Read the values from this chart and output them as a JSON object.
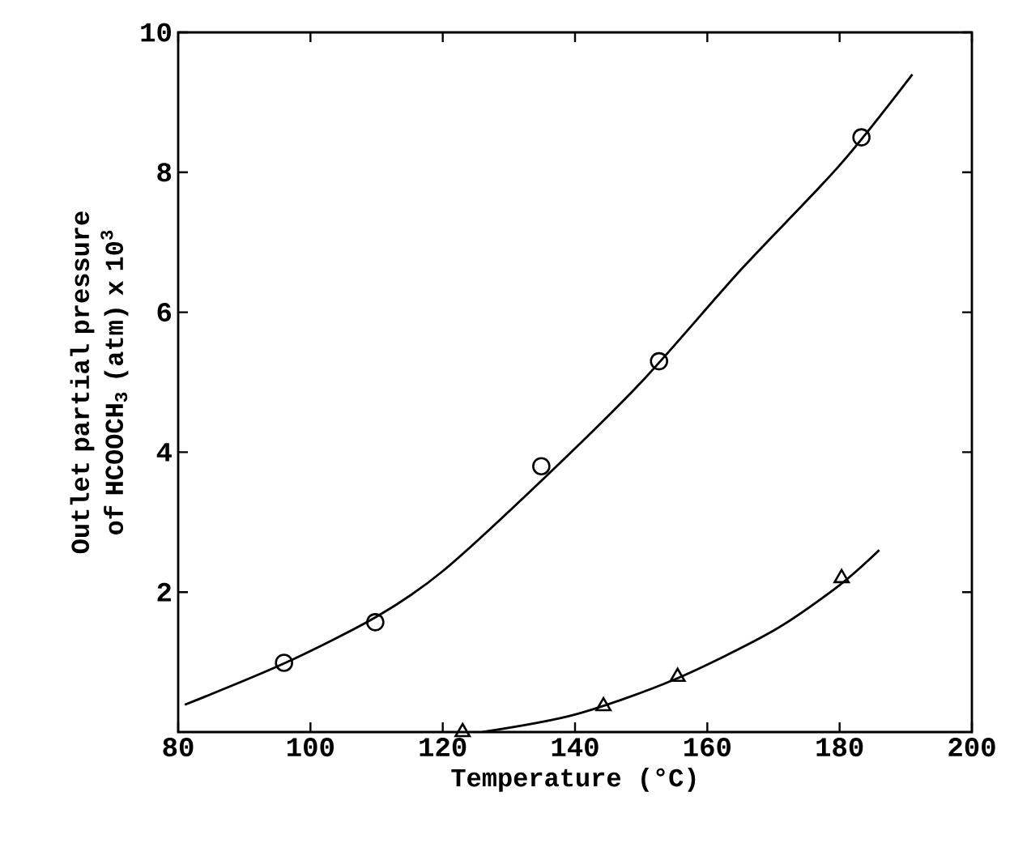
{
  "chart_data": {
    "type": "scatter",
    "xlabel": "Temperature (°C)",
    "ylabel": "Outlet partial pressure of HCOOCH$_{3}$ (atm) x 10$^{3}$",
    "xlim": [
      80,
      200
    ],
    "ylim": [
      0,
      10
    ],
    "xticks": [
      80,
      100,
      120,
      140,
      160,
      180,
      200
    ],
    "yticks": [
      2,
      4,
      6,
      8,
      10
    ],
    "series": [
      {
        "marker": "circle",
        "color": "#000000",
        "x": [
          96,
          109.8,
          134.9,
          152.7,
          183.3
        ],
        "values": [
          0.99,
          1.57,
          3.8,
          5.3,
          8.5
        ]
      },
      {
        "marker": "triangle",
        "color": "#000000",
        "x": [
          123,
          144.3,
          155.5,
          180.3
        ],
        "values": [
          0,
          0.37,
          0.79,
          2.2
        ]
      },
      {
        "type": "line",
        "marker": "none",
        "color": "#000000",
        "x": [
          81,
          96,
          110,
          120,
          135,
          150,
          165,
          180,
          191
        ],
        "values": [
          0.39,
          0.98,
          1.65,
          2.3,
          3.6,
          5.0,
          6.6,
          8.1,
          9.4
        ]
      },
      {
        "type": "line",
        "marker": "none",
        "color": "#000000",
        "x": [
          126,
          140,
          155,
          170,
          180,
          186
        ],
        "values": [
          0,
          0.25,
          0.75,
          1.45,
          2.1,
          2.6
        ]
      }
    ]
  }
}
